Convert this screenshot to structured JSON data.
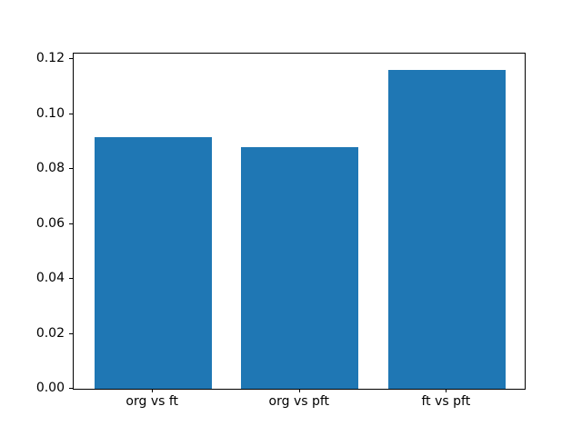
{
  "chart_data": {
    "type": "bar",
    "title": "",
    "xlabel": "",
    "ylabel": "",
    "categories": [
      "org vs ft",
      "org vs pft",
      "ft vs pft"
    ],
    "values": [
      0.0915,
      0.088,
      0.116
    ],
    "bar_color": "#1f77b4",
    "spine_color": "#000000",
    "background_color": "#ffffff",
    "ylim": [
      0,
      0.122
    ],
    "xlim": [
      -0.54,
      2.53
    ],
    "bar_width": 0.8,
    "ytick_labels": [
      "0.00",
      "0.02",
      "0.04",
      "0.06",
      "0.08",
      "0.10",
      "0.12"
    ],
    "grid": false,
    "legend": null
  }
}
